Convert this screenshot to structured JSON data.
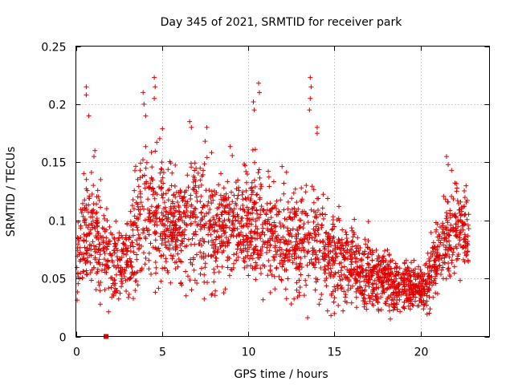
{
  "chart_data": {
    "type": "scatter",
    "title": "Day 345 of 2021, SRMTID for receiver park",
    "xlabel": "GPS time / hours",
    "ylabel": "SRMTID / TECUs",
    "xlim": [
      0,
      24
    ],
    "ylim": [
      0,
      0.25
    ],
    "x_ticks": [
      0,
      5,
      10,
      15,
      20
    ],
    "x_tick_labels": [
      "0",
      "5",
      "10",
      "15",
      "20"
    ],
    "y_ticks": [
      0,
      0.05,
      0.1,
      0.15,
      0.2,
      0.25
    ],
    "y_tick_labels": [
      "0",
      "0.05",
      "0.1",
      "0.15",
      "0.2",
      "0.25"
    ],
    "grid": true,
    "marker": "plus",
    "color": "#e00000",
    "gap_marker": {
      "x": 1.75,
      "y": 0
    },
    "profile": {
      "description": "approximate median envelope of the dense point cloud (hours, TECU)",
      "x": [
        0.0,
        0.5,
        1.0,
        1.5,
        2.0,
        2.5,
        3.0,
        3.5,
        4.0,
        4.5,
        5.0,
        5.5,
        6.0,
        6.5,
        7.0,
        7.5,
        8.0,
        8.5,
        9.0,
        9.5,
        10.0,
        10.5,
        11.0,
        11.5,
        12.0,
        12.5,
        13.0,
        13.5,
        14.0,
        14.5,
        15.0,
        15.5,
        16.0,
        16.5,
        17.0,
        17.5,
        18.0,
        18.5,
        19.0,
        19.5,
        20.0,
        20.5,
        21.0,
        21.5,
        22.0,
        22.5,
        22.8
      ],
      "y": [
        0.06,
        0.085,
        0.09,
        0.08,
        0.065,
        0.065,
        0.075,
        0.09,
        0.12,
        0.11,
        0.1,
        0.095,
        0.09,
        0.095,
        0.1,
        0.1,
        0.095,
        0.095,
        0.1,
        0.095,
        0.095,
        0.095,
        0.09,
        0.085,
        0.085,
        0.085,
        0.08,
        0.08,
        0.08,
        0.075,
        0.07,
        0.065,
        0.06,
        0.06,
        0.055,
        0.05,
        0.05,
        0.045,
        0.045,
        0.045,
        0.04,
        0.05,
        0.07,
        0.085,
        0.09,
        0.09,
        0.085
      ],
      "spread": [
        0.02,
        0.03,
        0.03,
        0.025,
        0.02,
        0.02,
        0.025,
        0.035,
        0.045,
        0.04,
        0.035,
        0.03,
        0.03,
        0.035,
        0.035,
        0.035,
        0.03,
        0.03,
        0.03,
        0.03,
        0.035,
        0.035,
        0.03,
        0.03,
        0.03,
        0.03,
        0.03,
        0.03,
        0.03,
        0.025,
        0.025,
        0.02,
        0.02,
        0.02,
        0.02,
        0.015,
        0.015,
        0.015,
        0.015,
        0.012,
        0.012,
        0.015,
        0.02,
        0.025,
        0.025,
        0.025,
        0.025
      ]
    },
    "outliers": [
      {
        "x": 0.6,
        "y": 0.215
      },
      {
        "x": 0.6,
        "y": 0.208
      },
      {
        "x": 0.75,
        "y": 0.19
      },
      {
        "x": 4.55,
        "y": 0.223
      },
      {
        "x": 4.6,
        "y": 0.215
      },
      {
        "x": 4.55,
        "y": 0.205
      },
      {
        "x": 3.9,
        "y": 0.21
      },
      {
        "x": 3.95,
        "y": 0.2
      },
      {
        "x": 4.05,
        "y": 0.19
      },
      {
        "x": 10.6,
        "y": 0.218
      },
      {
        "x": 10.65,
        "y": 0.21
      },
      {
        "x": 10.3,
        "y": 0.202
      },
      {
        "x": 10.35,
        "y": 0.195
      },
      {
        "x": 13.6,
        "y": 0.223
      },
      {
        "x": 13.65,
        "y": 0.215
      },
      {
        "x": 13.6,
        "y": 0.205
      },
      {
        "x": 13.55,
        "y": 0.195
      },
      {
        "x": 14.0,
        "y": 0.18
      },
      {
        "x": 14.0,
        "y": 0.175
      },
      {
        "x": 6.6,
        "y": 0.185
      },
      {
        "x": 6.7,
        "y": 0.18
      },
      {
        "x": 7.6,
        "y": 0.18
      },
      {
        "x": 21.5,
        "y": 0.155
      },
      {
        "x": 21.6,
        "y": 0.148
      },
      {
        "x": 21.8,
        "y": 0.143
      },
      {
        "x": 1.1,
        "y": 0.16
      },
      {
        "x": 1.05,
        "y": 0.155
      },
      {
        "x": 14.8,
        "y": 0.018
      },
      {
        "x": 14.6,
        "y": 0.022
      },
      {
        "x": 15.5,
        "y": 0.022
      },
      {
        "x": 17.2,
        "y": 0.028
      },
      {
        "x": 20.5,
        "y": 0.02
      },
      {
        "x": 12.5,
        "y": 0.028
      },
      {
        "x": 2.2,
        "y": 0.035
      }
    ]
  }
}
